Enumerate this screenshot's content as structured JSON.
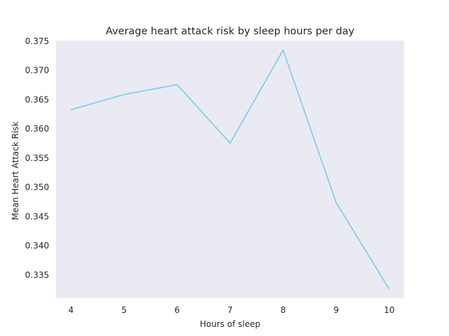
{
  "chart_data": {
    "type": "line",
    "title": "Average heart attack risk by sleep hours per day",
    "xlabel": "Hours of sleep",
    "ylabel": "Mean Heart Attack Risk",
    "x": [
      4,
      5,
      6,
      7,
      8,
      9,
      10
    ],
    "series": [
      {
        "values": [
          0.3632,
          0.3658,
          0.3675,
          0.3575,
          0.3734,
          0.3473,
          0.3325
        ]
      }
    ],
    "xlim": [
      3.72,
      10.28
    ],
    "ylim": [
      0.33096,
      0.37503
    ],
    "xticks": [
      4,
      5,
      6,
      7,
      8,
      9,
      10
    ],
    "yticks": [
      0.335,
      0.34,
      0.345,
      0.35,
      0.355,
      0.36,
      0.365,
      0.37,
      0.375
    ],
    "ytick_labels": [
      "0.335",
      "0.340",
      "0.345",
      "0.350",
      "0.355",
      "0.360",
      "0.365",
      "0.370",
      "0.375"
    ],
    "grid": false,
    "colors": {
      "line": "#87ceeb",
      "plot_background": "#eaeaf2"
    }
  }
}
